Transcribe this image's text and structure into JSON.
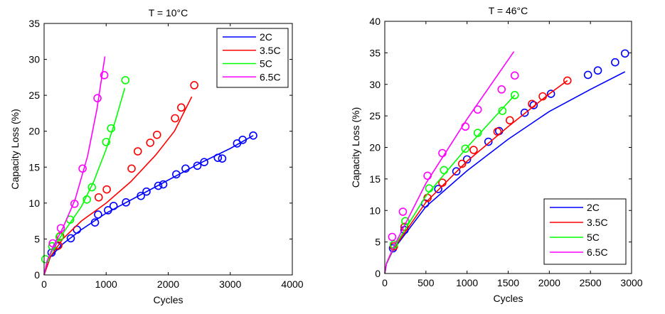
{
  "chart_data": [
    {
      "type": "scatter",
      "title": "T = 10°C",
      "xlabel": "Cycles",
      "ylabel": "Capacity Loss (%)",
      "xlim": [
        0,
        4000
      ],
      "ylim": [
        0,
        35
      ],
      "xticks": [
        0,
        1000,
        2000,
        3000,
        4000
      ],
      "yticks": [
        0,
        5,
        10,
        15,
        20,
        25,
        30,
        35
      ],
      "legend_position": "top-right",
      "grid": false,
      "series": [
        {
          "name": "2C",
          "color": "#0000ff",
          "points": [
            [
              120,
              3.1
            ],
            [
              210,
              4.0
            ],
            [
              430,
              5.1
            ],
            [
              530,
              6.3
            ],
            [
              820,
              7.3
            ],
            [
              870,
              8.4
            ],
            [
              1030,
              9.0
            ],
            [
              1120,
              9.6
            ],
            [
              1320,
              10.1
            ],
            [
              1560,
              11.0
            ],
            [
              1650,
              11.6
            ],
            [
              1840,
              12.4
            ],
            [
              1920,
              12.6
            ],
            [
              2130,
              14.0
            ],
            [
              2280,
              14.8
            ],
            [
              2470,
              15.2
            ],
            [
              2580,
              15.7
            ],
            [
              2800,
              16.3
            ],
            [
              2870,
              16.2
            ],
            [
              3110,
              18.3
            ],
            [
              3200,
              18.8
            ],
            [
              3370,
              19.4
            ]
          ],
          "fit": [
            [
              0,
              0
            ],
            [
              100,
              2.5
            ],
            [
              300,
              4.3
            ],
            [
              600,
              6.3
            ],
            [
              1000,
              8.6
            ],
            [
              1500,
              10.9
            ],
            [
              2000,
              13.2
            ],
            [
              2500,
              15.5
            ],
            [
              3000,
              17.6
            ],
            [
              3370,
              19.4
            ]
          ]
        },
        {
          "name": "3.5C",
          "color": "#ff0000",
          "points": [
            [
              230,
              4.1
            ],
            [
              260,
              5.4
            ],
            [
              880,
              10.8
            ],
            [
              1010,
              11.9
            ],
            [
              1410,
              14.8
            ],
            [
              1510,
              17.2
            ],
            [
              1710,
              18.4
            ],
            [
              1820,
              19.5
            ],
            [
              2110,
              21.8
            ],
            [
              2210,
              23.3
            ],
            [
              2420,
              26.4
            ]
          ],
          "fit": [
            [
              0,
              0
            ],
            [
              100,
              2.5
            ],
            [
              300,
              5
            ],
            [
              600,
              7.5
            ],
            [
              1000,
              10
            ],
            [
              1400,
              13
            ],
            [
              1800,
              16.7
            ],
            [
              2100,
              20
            ],
            [
              2380,
              24.8
            ]
          ]
        },
        {
          "name": "5C",
          "color": "#00ff00",
          "points": [
            [
              20,
              2.2
            ],
            [
              130,
              4.0
            ],
            [
              250,
              5.3
            ],
            [
              420,
              7.7
            ],
            [
              690,
              10.5
            ],
            [
              770,
              12.2
            ],
            [
              1000,
              18.5
            ],
            [
              1080,
              20.4
            ],
            [
              1310,
              27.1
            ]
          ],
          "fit": [
            [
              0,
              0
            ],
            [
              50,
              2
            ],
            [
              200,
              4.5
            ],
            [
              400,
              7
            ],
            [
              600,
              9.5
            ],
            [
              800,
              13
            ],
            [
              1000,
              17.5
            ],
            [
              1150,
              21.5
            ],
            [
              1300,
              26
            ]
          ]
        },
        {
          "name": "6.5C",
          "color": "#ff00ff",
          "points": [
            [
              140,
              4.4
            ],
            [
              270,
              6.5
            ],
            [
              490,
              9.9
            ],
            [
              620,
              14.8
            ],
            [
              860,
              24.6
            ],
            [
              970,
              27.8
            ]
          ],
          "fit": [
            [
              0,
              0
            ],
            [
              50,
              2
            ],
            [
              150,
              4
            ],
            [
              300,
              6.5
            ],
            [
              500,
              10.5
            ],
            [
              700,
              16.5
            ],
            [
              850,
              23
            ],
            [
              980,
              30.4
            ]
          ]
        }
      ]
    },
    {
      "type": "scatter",
      "title": "T = 46°C",
      "xlabel": "Cycles",
      "ylabel": "Capacity Loss (%)",
      "xlim": [
        0,
        3000
      ],
      "ylim": [
        0,
        40
      ],
      "xticks": [
        0,
        500,
        1000,
        1500,
        2000,
        2500,
        3000
      ],
      "yticks": [
        0,
        5,
        10,
        15,
        20,
        25,
        30,
        35,
        40
      ],
      "legend_position": "bottom-right",
      "grid": false,
      "series": [
        {
          "name": "2C",
          "color": "#0000ff",
          "points": [
            [
              100,
              4.0
            ],
            [
              110,
              4.3
            ],
            [
              240,
              6.9
            ],
            [
              490,
              11.1
            ],
            [
              650,
              13.4
            ],
            [
              870,
              16.2
            ],
            [
              1000,
              18.1
            ],
            [
              1260,
              20.9
            ],
            [
              1390,
              22.6
            ],
            [
              1700,
              25.5
            ],
            [
              1810,
              26.7
            ],
            [
              2020,
              28.5
            ],
            [
              2470,
              31.5
            ],
            [
              2590,
              32.2
            ],
            [
              2800,
              33.5
            ],
            [
              2920,
              34.9
            ]
          ],
          "fit": [
            [
              0,
              0
            ],
            [
              20,
              1.5
            ],
            [
              100,
              3.7
            ],
            [
              500,
              10.6
            ],
            [
              1000,
              16.3
            ],
            [
              1500,
              21.3
            ],
            [
              2000,
              25.7
            ],
            [
              2500,
              29.2
            ],
            [
              2920,
              32
            ]
          ]
        },
        {
          "name": "3.5C",
          "color": "#ff0000",
          "points": [
            [
              110,
              4.3
            ],
            [
              240,
              7.4
            ],
            [
              520,
              12.0
            ],
            [
              700,
              14.4
            ],
            [
              940,
              17.4
            ],
            [
              1080,
              19.6
            ],
            [
              1370,
              22.5
            ],
            [
              1520,
              24.3
            ],
            [
              1790,
              26.9
            ],
            [
              1920,
              28.1
            ],
            [
              2220,
              30.6
            ]
          ],
          "fit": [
            [
              0,
              0
            ],
            [
              20,
              1.5
            ],
            [
              100,
              3.8
            ],
            [
              500,
              11.3
            ],
            [
              1000,
              17.8
            ],
            [
              1500,
              23.3
            ],
            [
              2000,
              28.5
            ],
            [
              2220,
              30.6
            ]
          ]
        },
        {
          "name": "5C",
          "color": "#00ff00",
          "points": [
            [
              110,
              4.6
            ],
            [
              250,
              8.3
            ],
            [
              540,
              13.5
            ],
            [
              720,
              16.4
            ],
            [
              980,
              19.8
            ],
            [
              1130,
              22.3
            ],
            [
              1430,
              25.8
            ],
            [
              1580,
              28.3
            ]
          ],
          "fit": [
            [
              0,
              0
            ],
            [
              20,
              1.5
            ],
            [
              100,
              3.9
            ],
            [
              500,
              12.3
            ],
            [
              1000,
              20
            ],
            [
              1580,
              28.3
            ]
          ]
        },
        {
          "name": "6.5C",
          "color": "#ff00ff",
          "points": [
            [
              90,
              5.8
            ],
            [
              220,
              9.8
            ],
            [
              520,
              15.5
            ],
            [
              700,
              19.1
            ],
            [
              980,
              23.3
            ],
            [
              1130,
              26.0
            ],
            [
              1420,
              29.2
            ],
            [
              1580,
              31.4
            ]
          ],
          "fit": [
            [
              0,
              0
            ],
            [
              20,
              1.6
            ],
            [
              100,
              4.0
            ],
            [
              500,
              14.3
            ],
            [
              1000,
              24.5
            ],
            [
              1570,
              35.2
            ]
          ]
        }
      ]
    }
  ]
}
